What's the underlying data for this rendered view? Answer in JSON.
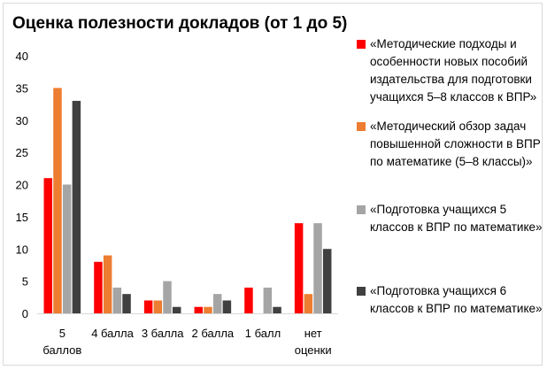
{
  "chart_data": {
    "type": "bar",
    "title": "Оценка полезности докладов (от 1 до 5)",
    "categories": [
      [
        "5",
        "баллов"
      ],
      [
        "4 балла"
      ],
      [
        "3 балла"
      ],
      [
        "2 балла"
      ],
      [
        "1 балл"
      ],
      [
        "нет",
        "оценки"
      ]
    ],
    "series": [
      {
        "name": "«Методические подходы и особенности новых пособий издательства для подготовки учащихся 5–8 классов к ВПР»",
        "color": "#ff0000",
        "values": [
          21,
          8,
          2,
          1,
          4,
          14
        ]
      },
      {
        "name": "«Методический обзор задач повышенной сложности в ВПР по математике (5–8 классы)»",
        "color": "#ed7d31",
        "values": [
          35,
          9,
          2,
          1,
          0,
          3
        ]
      },
      {
        "name": "«Подготовка учащихся 5 классов к ВПР по математике»",
        "color": "#a5a5a5",
        "values": [
          20,
          4,
          5,
          3,
          4,
          14
        ]
      },
      {
        "name": "«Подготовка учащихся 6 классов к ВПР по математике»",
        "color": "#404040",
        "values": [
          33,
          3,
          1,
          2,
          1,
          10
        ]
      }
    ],
    "yticks": [
      0,
      5,
      10,
      15,
      20,
      25,
      30,
      35,
      40
    ],
    "ylim": [
      0,
      40
    ],
    "xlabel": "",
    "ylabel": "",
    "grid": false,
    "legend": "right"
  }
}
